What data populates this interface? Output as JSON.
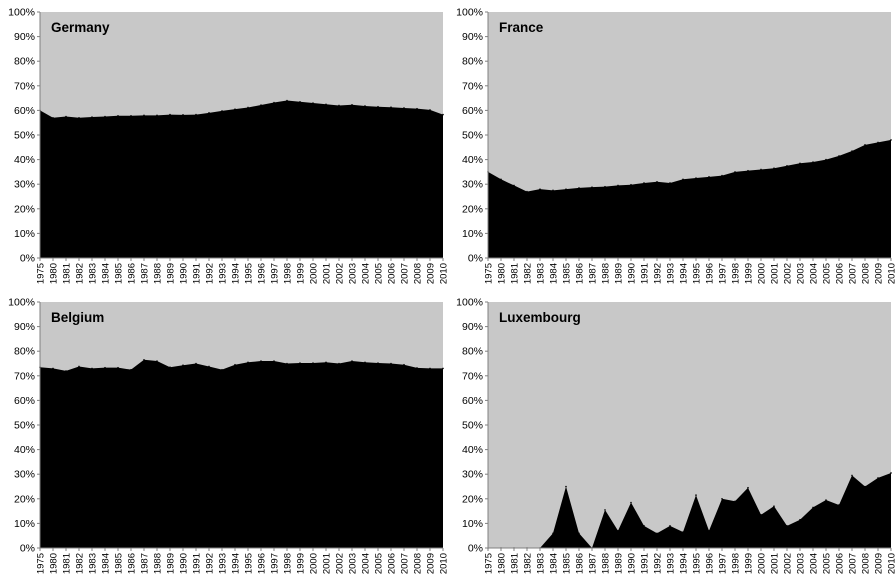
{
  "chart_data": [
    {
      "type": "area",
      "title": "Germany",
      "x": [
        "1975",
        "1980",
        "1981",
        "1982",
        "1983",
        "1984",
        "1985",
        "1986",
        "1987",
        "1988",
        "1989",
        "1990",
        "1991",
        "1992",
        "1993",
        "1994",
        "1995",
        "1996",
        "1997",
        "1998",
        "1999",
        "2000",
        "2001",
        "2002",
        "2003",
        "2004",
        "2005",
        "2006",
        "2007",
        "2008",
        "2009",
        "2010"
      ],
      "values": [
        60,
        57,
        57.5,
        57,
        57.3,
        57.5,
        57.8,
        57.8,
        58,
        58,
        58.3,
        58.2,
        58.3,
        59,
        59.8,
        60.5,
        61.2,
        62.2,
        63.2,
        64,
        63.5,
        63,
        62.5,
        62,
        62.3,
        61.8,
        61.5,
        61.3,
        61,
        60.7,
        60.2,
        58.3
      ],
      "ylim": [
        0,
        100
      ],
      "y_ticks": [
        "0%",
        "10%",
        "20%",
        "30%",
        "40%",
        "50%",
        "60%",
        "70%",
        "80%",
        "90%",
        "100%"
      ],
      "fill_color": "#000000",
      "background_color": "#c8c8c8"
    },
    {
      "type": "area",
      "title": "France",
      "x": [
        "1975",
        "1980",
        "1981",
        "1982",
        "1983",
        "1984",
        "1985",
        "1986",
        "1987",
        "1988",
        "1989",
        "1990",
        "1991",
        "1992",
        "1993",
        "1994",
        "1995",
        "1996",
        "1997",
        "1998",
        "1999",
        "2000",
        "2001",
        "2002",
        "2003",
        "2004",
        "2005",
        "2006",
        "2007",
        "2008",
        "2009",
        "2010"
      ],
      "values": [
        35,
        32,
        29.5,
        27,
        28,
        27.5,
        28,
        28.5,
        28.8,
        29,
        29.5,
        29.8,
        30.5,
        31,
        30.5,
        32,
        32.5,
        33,
        33.5,
        35,
        35.5,
        36,
        36.5,
        37.5,
        38.5,
        39,
        40,
        41.5,
        43.5,
        46,
        47,
        48
      ],
      "ylim": [
        0,
        100
      ],
      "y_ticks": [
        "0%",
        "10%",
        "20%",
        "30%",
        "40%",
        "50%",
        "60%",
        "70%",
        "80%",
        "90%",
        "100%"
      ],
      "fill_color": "#000000",
      "background_color": "#c8c8c8"
    },
    {
      "type": "area",
      "title": "Belgium",
      "x": [
        "1975",
        "1980",
        "1981",
        "1982",
        "1983",
        "1984",
        "1985",
        "1986",
        "1987",
        "1988",
        "1989",
        "1990",
        "1991",
        "1992",
        "1993",
        "1994",
        "1995",
        "1996",
        "1997",
        "1998",
        "1999",
        "2000",
        "2001",
        "2002",
        "2003",
        "2004",
        "2005",
        "2006",
        "2007",
        "2008",
        "2009",
        "2010"
      ],
      "values": [
        73.5,
        73,
        72,
        73.8,
        73,
        73.3,
        73.3,
        72.5,
        76.5,
        76,
        73.5,
        74.3,
        75,
        73.8,
        72.5,
        74.5,
        75.5,
        76,
        76,
        75,
        75.2,
        75.2,
        75.5,
        75,
        76,
        75.5,
        75.2,
        75,
        74.5,
        73.2,
        73,
        73
      ],
      "ylim": [
        0,
        100
      ],
      "y_ticks": [
        "0%",
        "10%",
        "20%",
        "30%",
        "40%",
        "50%",
        "60%",
        "70%",
        "80%",
        "90%",
        "100%"
      ],
      "fill_color": "#000000",
      "background_color": "#c8c8c8"
    },
    {
      "type": "area",
      "title": "Luxembourg",
      "x": [
        "1975",
        "1980",
        "1981",
        "1982",
        "1983",
        "1984",
        "1985",
        "1986",
        "1987",
        "1988",
        "1989",
        "1990",
        "1991",
        "1992",
        "1993",
        "1994",
        "1995",
        "1996",
        "1997",
        "1998",
        "1999",
        "2000",
        "2001",
        "2002",
        "2003",
        "2004",
        "2005",
        "2006",
        "2007",
        "2008",
        "2009",
        "2010"
      ],
      "values": [
        0,
        0,
        0,
        0,
        0,
        6,
        25,
        6,
        0,
        15.5,
        7,
        18.5,
        9,
        6,
        9,
        6.5,
        21.5,
        7,
        20,
        19,
        24.5,
        13.5,
        17,
        9,
        11.5,
        16.5,
        19.5,
        17.5,
        29.5,
        25,
        28.5,
        30.5
      ],
      "ylim": [
        0,
        100
      ],
      "y_ticks": [
        "0%",
        "10%",
        "20%",
        "30%",
        "40%",
        "50%",
        "60%",
        "70%",
        "80%",
        "90%",
        "100%"
      ],
      "fill_color": "#000000",
      "background_color": "#c8c8c8"
    }
  ]
}
